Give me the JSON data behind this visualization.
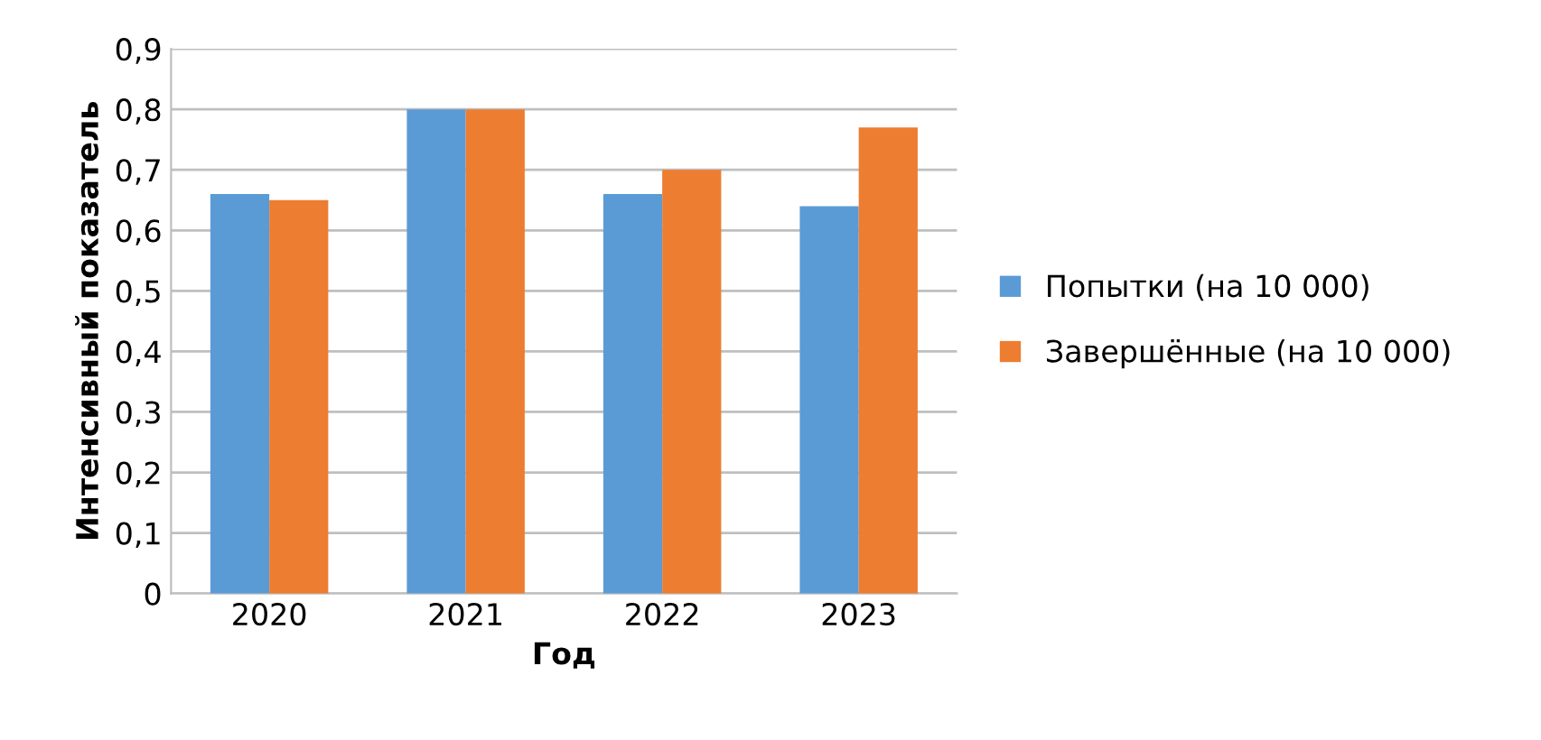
{
  "chart_data": {
    "type": "bar",
    "xlabel": "Год",
    "ylabel": "Интенсивный показатель",
    "categories": [
      "2020",
      "2021",
      "2022",
      "2023"
    ],
    "series": [
      {
        "name": "Попытки (на 10 000)",
        "color": "#5b9bd5",
        "values": [
          0.66,
          0.8,
          0.66,
          0.64
        ]
      },
      {
        "name": "Завершённые (на 10 000)",
        "color": "#ed7d31",
        "values": [
          0.65,
          0.8,
          0.7,
          0.77
        ]
      }
    ],
    "ylim": [
      0,
      0.9
    ],
    "yticks": [
      0,
      {
        "value": 0.1,
        "label": "0,1"
      },
      {
        "value": 0.2,
        "label": "0,2"
      },
      {
        "value": 0.3,
        "label": "0,3"
      },
      {
        "value": 0.4,
        "label": "0,4"
      },
      {
        "value": 0.5,
        "label": "0,5"
      },
      {
        "value": 0.6,
        "label": "0,6"
      },
      {
        "value": 0.7,
        "label": "0,7"
      },
      {
        "value": 0.8,
        "label": "0,8"
      },
      {
        "value": 0.9,
        "label": "0,9"
      }
    ],
    "grid": "y",
    "legend": "right"
  }
}
